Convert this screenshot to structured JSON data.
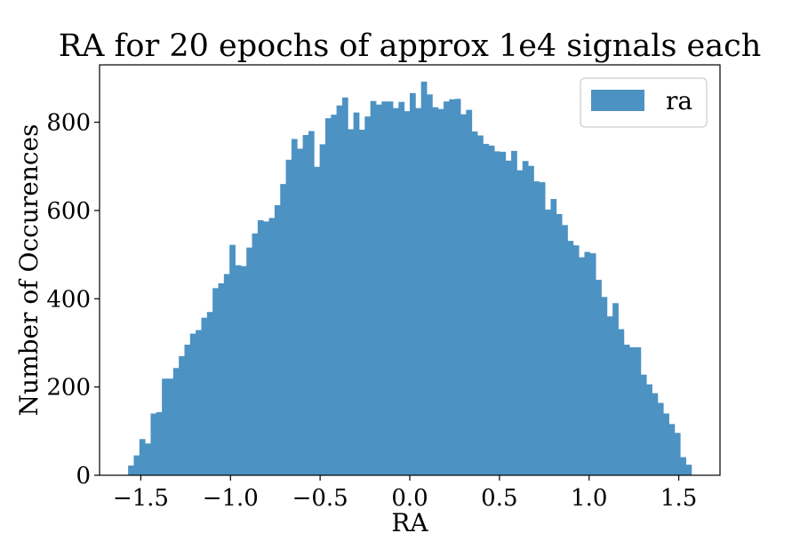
{
  "chart_data": {
    "type": "bar",
    "title": "RA for 20 epochs of approx 1e4 signals each",
    "xlabel": "RA",
    "ylabel": "Number of Occurences",
    "xlim": [
      -1.73,
      1.73
    ],
    "ylim": [
      0,
      930
    ],
    "xticks": [
      -1.5,
      -1.0,
      -0.5,
      0.0,
      0.5,
      1.0,
      1.5
    ],
    "xtick_labels": [
      "−1.5",
      "−1.0",
      "−0.5",
      "0.0",
      "0.5",
      "1.0",
      "1.5"
    ],
    "yticks": [
      0,
      200,
      400,
      600,
      800
    ],
    "ytick_labels": [
      "0",
      "200",
      "400",
      "600",
      "800"
    ],
    "bin_start": -1.5708,
    "bin_width": 0.031416,
    "legend": {
      "position": "top-right",
      "entries": [
        "ra"
      ]
    },
    "grid": false,
    "series": [
      {
        "name": "ra",
        "color": "#4c92c3",
        "values": [
          22,
          45,
          82,
          72,
          140,
          143,
          219,
          219,
          243,
          270,
          296,
          321,
          329,
          357,
          370,
          424,
          435,
          456,
          522,
          476,
          474,
          516,
          548,
          578,
          575,
          583,
          612,
          660,
          715,
          762,
          740,
          771,
          780,
          699,
          750,
          809,
          817,
          838,
          856,
          784,
          822,
          783,
          813,
          848,
          840,
          847,
          847,
          832,
          846,
          825,
          866,
          832,
          892,
          863,
          834,
          830,
          847,
          852,
          853,
          818,
          828,
          779,
          770,
          751,
          747,
          734,
          733,
          713,
          735,
          691,
          712,
          701,
          666,
          664,
          602,
          626,
          592,
          567,
          531,
          521,
          494,
          506,
          503,
          443,
          404,
          360,
          390,
          331,
          296,
          290,
          290,
          228,
          206,
          186,
          164,
          140,
          116,
          96,
          41,
          24
        ]
      }
    ]
  }
}
